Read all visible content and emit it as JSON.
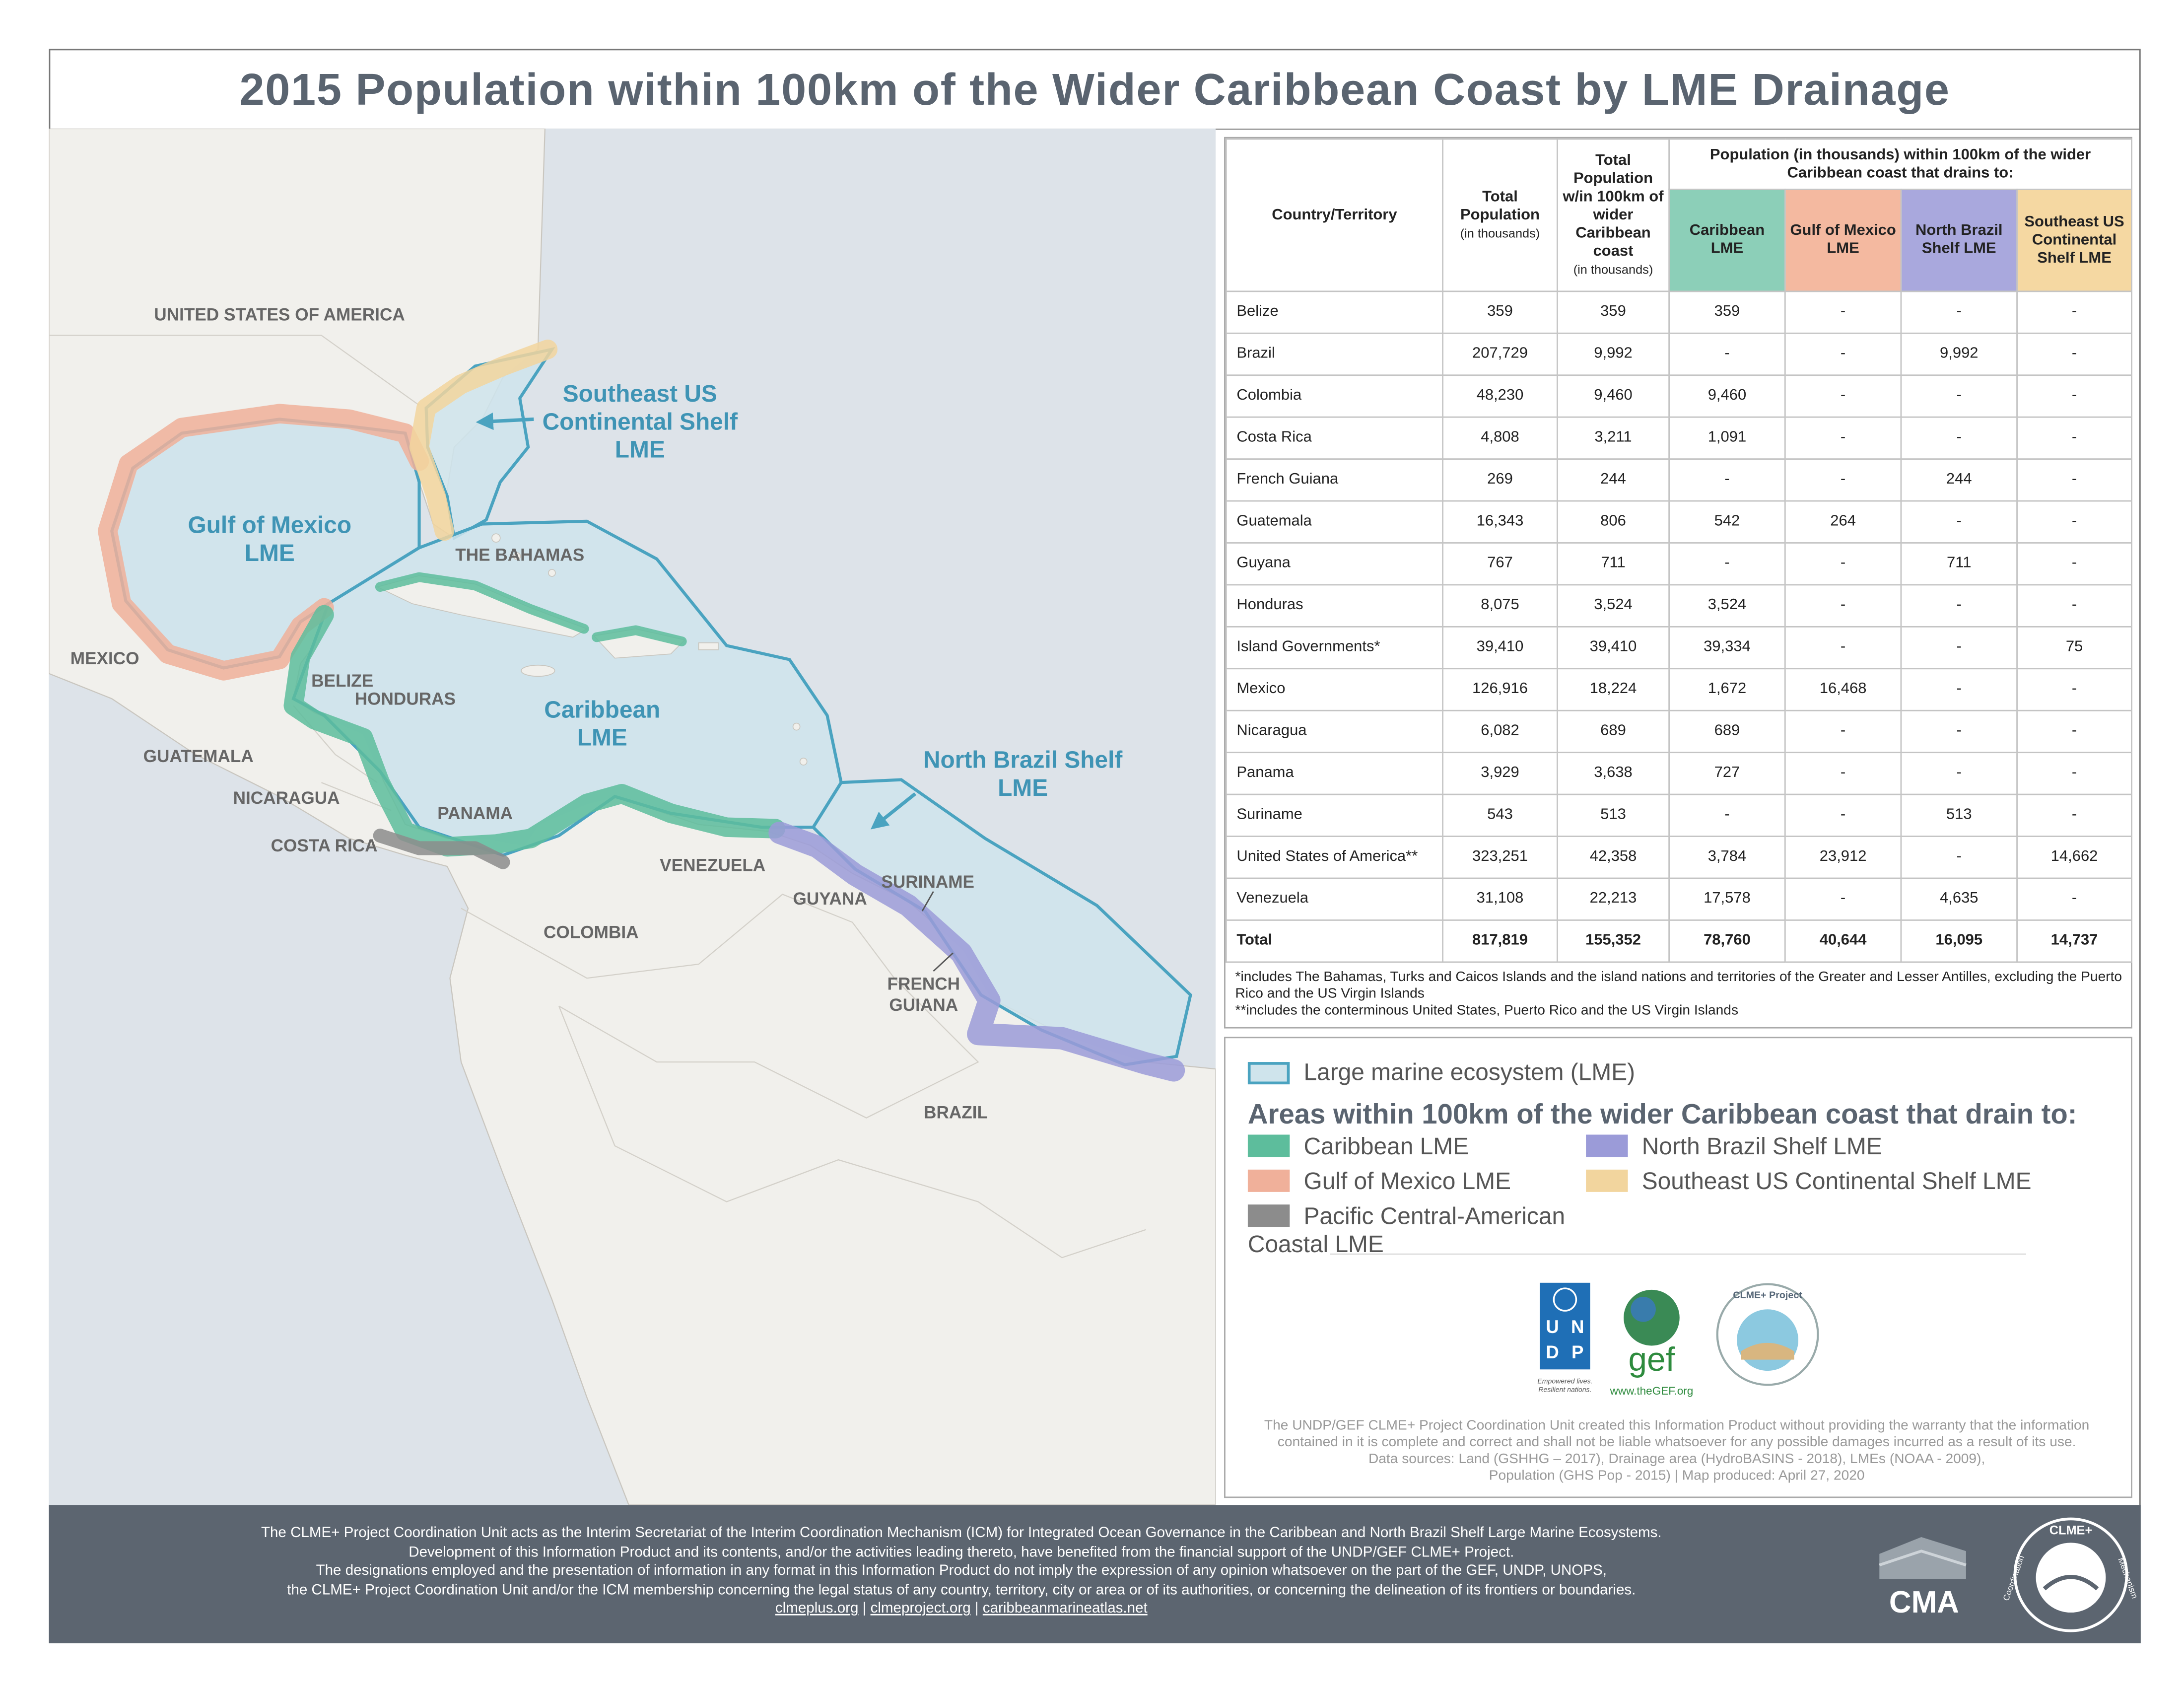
{
  "header": {
    "title": "2015 Population within 100km of the Wider Caribbean Coast by LME Drainage"
  },
  "map": {
    "country_labels": [
      [
        "UNITED STATES OF AMERICA"
      ],
      [
        "MEXICO"
      ],
      [
        "BELIZE"
      ],
      [
        "HONDURAS"
      ],
      [
        "GUATEMALA"
      ],
      [
        "NICARAGUA"
      ],
      [
        "PANAMA"
      ],
      [
        "COSTA RICA"
      ],
      [
        "THE BAHAMAS"
      ],
      [
        "VENEZUELA"
      ],
      [
        "GUYANA"
      ],
      [
        "SURINAME"
      ],
      [
        "COLOMBIA"
      ],
      [
        "FRENCH",
        "GUIANA"
      ],
      [
        "BRAZIL"
      ]
    ],
    "lme_labels": [
      [
        "Gulf of Mexico",
        "LME"
      ],
      [
        "Southeast US",
        "Continental Shelf",
        "LME"
      ],
      [
        "Caribbean",
        "LME"
      ],
      [
        "North Brazil Shelf",
        "LME"
      ]
    ]
  },
  "table": {
    "headers": {
      "country": "Country/Territory",
      "total": "Total Population",
      "total_unit": "(in thousands)",
      "within": "Total Population w/in 100km of wider Caribbean coast",
      "within_unit": "(in thousands)",
      "group": "Population (in thousands) within 100km of the wider Caribbean coast that drains to:",
      "lmes": [
        "Caribbean LME",
        "Gulf of Mexico LME",
        "North Brazil Shelf LME",
        "Southeast US Continental Shelf LME"
      ]
    },
    "rows": [
      [
        "Belize",
        "359",
        "359",
        "359",
        "-",
        "-",
        "-"
      ],
      [
        "Brazil",
        "207,729",
        "9,992",
        "-",
        "-",
        "9,992",
        "-"
      ],
      [
        "Colombia",
        "48,230",
        "9,460",
        "9,460",
        "-",
        "-",
        "-"
      ],
      [
        "Costa Rica",
        "4,808",
        "3,211",
        "1,091",
        "-",
        "-",
        "-"
      ],
      [
        "French Guiana",
        "269",
        "244",
        "-",
        "-",
        "244",
        "-"
      ],
      [
        "Guatemala",
        "16,343",
        "806",
        "542",
        "264",
        "-",
        "-"
      ],
      [
        "Guyana",
        "767",
        "711",
        "-",
        "-",
        "711",
        "-"
      ],
      [
        "Honduras",
        "8,075",
        "3,524",
        "3,524",
        "-",
        "-",
        "-"
      ],
      [
        "Island Governments*",
        "39,410",
        "39,410",
        "39,334",
        "-",
        "-",
        "75"
      ],
      [
        "Mexico",
        "126,916",
        "18,224",
        "1,672",
        "16,468",
        "-",
        "-"
      ],
      [
        "Nicaragua",
        "6,082",
        "689",
        "689",
        "-",
        "-",
        "-"
      ],
      [
        "Panama",
        "3,929",
        "3,638",
        "727",
        "-",
        "-",
        "-"
      ],
      [
        "Suriname",
        "543",
        "513",
        "-",
        "-",
        "513",
        "-"
      ],
      [
        "United States of America**",
        "323,251",
        "42,358",
        "3,784",
        "23,912",
        "-",
        "14,662"
      ],
      [
        "Venezuela",
        "31,108",
        "22,213",
        "17,578",
        "-",
        "4,635",
        "-"
      ]
    ],
    "total": [
      "Total",
      "817,819",
      "155,352",
      "78,760",
      "40,644",
      "16,095",
      "14,737"
    ],
    "footnotes": [
      "*includes The Bahamas, Turks and Caicos Islands and the island nations and territories of the Greater and Lesser Antilles, excluding the Puerto Rico and the US Virgin Islands",
      "**includes the conterminous United States, Puerto Rico and the US Virgin Islands"
    ]
  },
  "legend": {
    "lme": "Large marine ecosystem (LME)",
    "title": "Areas within 100km of the wider Caribbean coast that drain to:",
    "items": [
      {
        "name": "Caribbean LME",
        "color": "#5dbd9c"
      },
      {
        "name": "North Brazil Shelf LME",
        "color": "#9b9bd8"
      },
      {
        "name": "Gulf of Mexico LME",
        "color": "#f0b09a"
      },
      {
        "name": "Southeast US Continental Shelf LME",
        "color": "#f2d59e"
      },
      {
        "name": "Pacific Central-American Coastal LME",
        "color": "#8c8c8c"
      }
    ]
  },
  "logos": {
    "undp": [
      "U",
      "N",
      "D",
      "P"
    ],
    "undp_tagline": [
      "Empowered lives.",
      "Resilient nations."
    ],
    "gef": "gef",
    "gef_url": "www.theGEF.org",
    "clme_project": "CLME+ Project",
    "cma": "CMA",
    "mechanism": [
      "Coordination",
      "CLME+",
      "Mechanism"
    ]
  },
  "disclaimer": [
    "The UNDP/GEF CLME+ Project Coordination Unit created this Information Product without providing the warranty that the information",
    "contained in it is complete and correct and shall not be liable whatsoever for any possible damages incurred as a result of its use.",
    "Data sources: Land (GSHHG – 2017), Drainage area (HydroBASINS - 2018),  LMEs (NOAA - 2009),",
    "Population (GHS Pop - 2015) | Map produced: April 27, 2020"
  ],
  "footer": {
    "lines": [
      "The CLME+ Project Coordination Unit acts as the Interim Secretariat of the Interim Coordination Mechanism (ICM) for Integrated Ocean Governance in the Caribbean and North Brazil Shelf Large Marine Ecosystems.",
      "Development of this Information Product and its contents, and/or the activities leading thereto, have benefited from the financial support of the UNDP/GEF CLME+ Project.",
      "The designations employed and the presentation of information in any format in this Information Product do not imply the expression of any opinion whatsoever on the part of the GEF, UNDP, UNOPS,",
      "the CLME+ Project Coordination Unit and/or the ICM membership concerning the legal status of any country, territory, city or area or of its authorities, or concerning the delineation of its frontiers or boundaries."
    ],
    "links": [
      "clmeplus.org",
      "clmeproject.org",
      "caribbeanmarineatlas.net"
    ],
    "separator": "|"
  }
}
